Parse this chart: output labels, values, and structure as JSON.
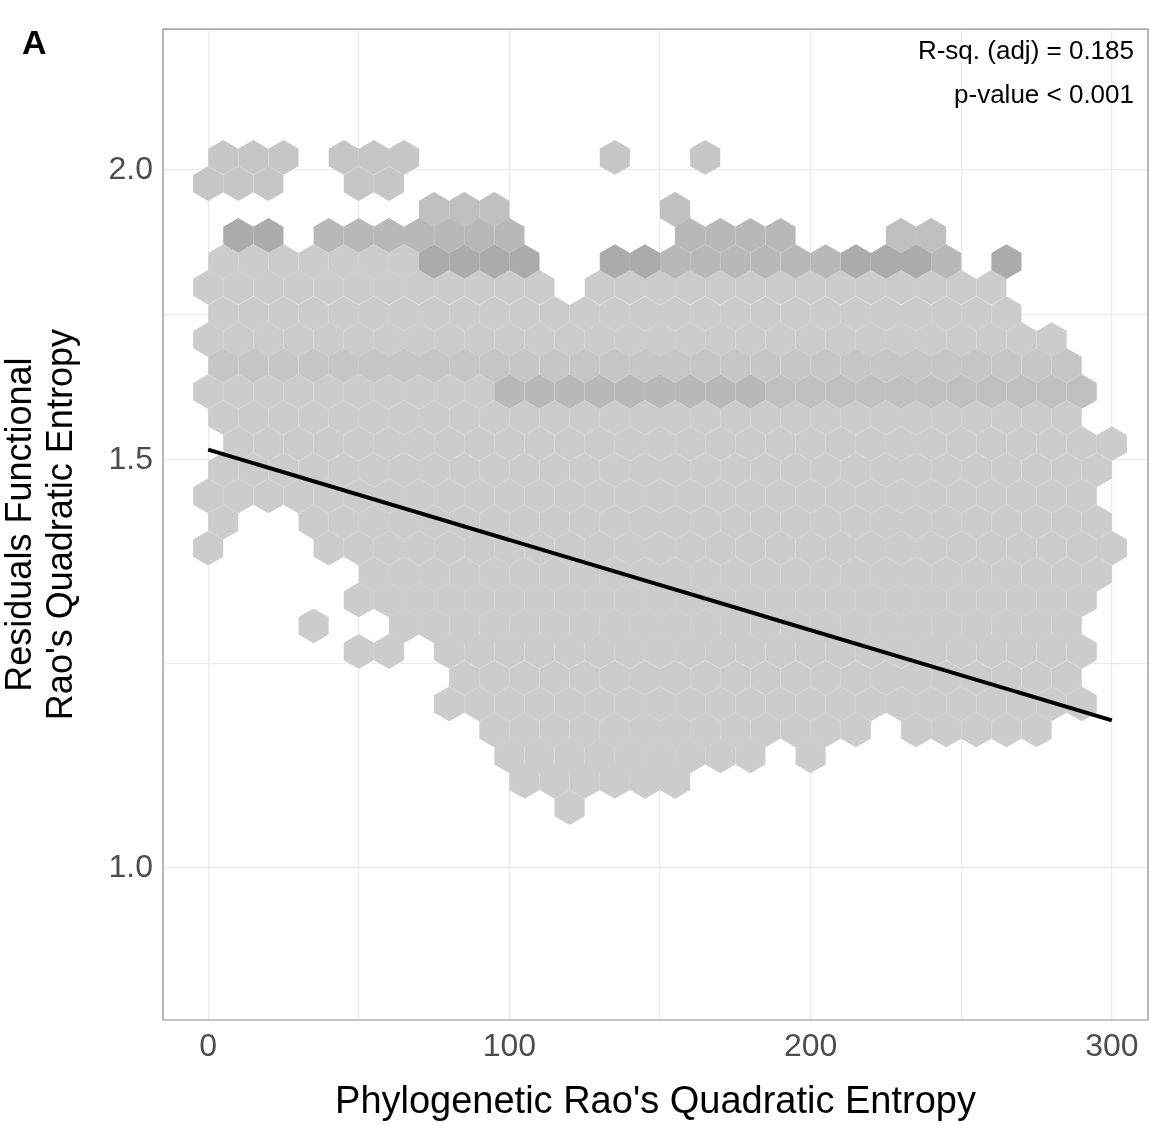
{
  "chart_data": {
    "type": "scatter",
    "title": "A",
    "xlabel": "Phylogenetic Rao's Quadratic Entropy",
    "ylabel": "Residuals Functional\nRao's Quadratic Entropy",
    "annotations": [
      "R-sq. (adj) = 0.185",
      "p-value < 0.001"
    ],
    "log": "y",
    "grid": true,
    "xlim": [
      -15,
      312
    ],
    "xticks": [
      0,
      {
        "value": 50,
        "label": null
      },
      100,
      {
        "value": 150,
        "label": null
      },
      200,
      {
        "value": 250,
        "label": null
      },
      300
    ],
    "ylim": [
      0.86,
      2.3
    ],
    "yticks": [
      {
        "value": 1,
        "label": "1.0"
      },
      {
        "value": 1.225,
        "label": null
      },
      {
        "value": 1.5,
        "label": "1.5"
      },
      {
        "value": 1.732,
        "label": null
      },
      {
        "value": 2,
        "label": "2.0"
      }
    ],
    "series": [
      {
        "color": "#c6c6c6",
        "x": [
          5,
          15,
          25,
          45,
          55,
          65,
          135,
          165
        ],
        "values": [
          2.025,
          2.025,
          2.025,
          2.025,
          2.025,
          2.025,
          2.025,
          2.025
        ]
      },
      {
        "color": "#c6c6c6",
        "x": [
          0,
          10,
          20,
          50,
          60
        ],
        "values": [
          1.973,
          1.973,
          1.973,
          1.973,
          1.973
        ]
      },
      {
        "color": "#c0c0c0",
        "x": [
          75,
          85,
          95,
          155
        ],
        "values": [
          1.923,
          1.923,
          1.923,
          1.923
        ]
      },
      {
        "color": "#ababab",
        "x": [
          10,
          20
        ],
        "values": [
          1.874,
          1.874
        ]
      },
      {
        "color": "#b8b8b8",
        "x": [
          40,
          50,
          60,
          70,
          80,
          90,
          100,
          160,
          170,
          180,
          190
        ],
        "values": [
          1.874,
          1.874,
          1.874,
          1.874,
          1.874,
          1.874,
          1.874,
          1.874,
          1.874,
          1.874,
          1.874
        ]
      },
      {
        "color": "#c0c0c0",
        "x": [
          230,
          240
        ],
        "values": [
          1.874,
          1.874
        ]
      },
      {
        "color": "#cccccc",
        "x": [
          5,
          15,
          25,
          35,
          45,
          55,
          65
        ],
        "values": [
          1.826,
          1.826,
          1.826,
          1.826,
          1.826,
          1.826,
          1.826
        ]
      },
      {
        "color": "#ababab",
        "x": [
          75,
          85,
          95,
          105,
          135,
          145,
          215,
          225,
          235,
          265
        ],
        "values": [
          1.826,
          1.826,
          1.826,
          1.826,
          1.826,
          1.826,
          1.826,
          1.826,
          1.826,
          1.826
        ]
      },
      {
        "color": "#b8b8b8",
        "x": [
          155,
          165,
          175,
          185,
          195,
          205,
          245
        ],
        "values": [
          1.826,
          1.826,
          1.826,
          1.826,
          1.826,
          1.826,
          1.826
        ]
      },
      {
        "color": "#cccccc",
        "x": [
          0,
          10,
          20,
          30,
          40,
          50,
          60,
          70,
          80,
          90,
          100,
          110,
          130,
          140,
          150,
          160,
          170,
          180,
          190,
          200,
          210,
          220,
          230,
          240,
          250,
          260
        ],
        "values": [
          1.78,
          1.78,
          1.78,
          1.78,
          1.78,
          1.78,
          1.78,
          1.78,
          1.78,
          1.78,
          1.78,
          1.78,
          1.78,
          1.78,
          1.78,
          1.78,
          1.78,
          1.78,
          1.78,
          1.78,
          1.78,
          1.78,
          1.78,
          1.78,
          1.78,
          1.78
        ]
      },
      {
        "color": "#cccccc",
        "x": [
          5,
          15,
          25,
          35,
          45,
          55,
          65,
          75,
          85,
          95,
          105,
          115,
          125,
          135,
          145,
          155,
          165,
          175,
          185,
          195,
          205,
          215,
          225,
          235,
          245,
          255,
          265
        ],
        "values": [
          1.734,
          1.734,
          1.734,
          1.734,
          1.734,
          1.734,
          1.734,
          1.734,
          1.734,
          1.734,
          1.734,
          1.734,
          1.734,
          1.734,
          1.734,
          1.734,
          1.734,
          1.734,
          1.734,
          1.734,
          1.734,
          1.734,
          1.734,
          1.734,
          1.734,
          1.734,
          1.734
        ]
      },
      {
        "color": "#cccccc",
        "x": [
          0,
          10,
          20,
          30,
          40,
          50,
          60,
          70,
          80,
          90,
          100,
          110,
          120,
          130,
          140,
          150,
          160,
          170,
          180,
          190,
          200,
          210,
          220,
          230,
          240,
          250,
          260,
          270,
          280
        ],
        "values": [
          1.69,
          1.69,
          1.69,
          1.69,
          1.69,
          1.69,
          1.69,
          1.69,
          1.69,
          1.69,
          1.69,
          1.69,
          1.69,
          1.69,
          1.69,
          1.69,
          1.69,
          1.69,
          1.69,
          1.69,
          1.69,
          1.69,
          1.69,
          1.69,
          1.69,
          1.69,
          1.69,
          1.69,
          1.69
        ]
      },
      {
        "color": "#c6c6c6",
        "x": [
          5,
          15,
          25,
          35,
          45,
          55,
          65,
          75,
          85,
          95,
          105,
          115,
          125,
          135,
          145,
          155,
          165,
          175,
          185,
          195,
          205,
          215,
          225,
          235,
          245,
          255,
          265,
          275,
          285
        ],
        "values": [
          1.647,
          1.647,
          1.647,
          1.647,
          1.647,
          1.647,
          1.647,
          1.647,
          1.647,
          1.647,
          1.647,
          1.647,
          1.647,
          1.647,
          1.647,
          1.647,
          1.647,
          1.647,
          1.647,
          1.647,
          1.647,
          1.647,
          1.647,
          1.647,
          1.647,
          1.647,
          1.647,
          1.647,
          1.647
        ]
      },
      {
        "color": "#cccccc",
        "x": [
          0,
          10,
          20,
          30,
          40,
          50,
          60,
          70,
          80,
          90
        ],
        "values": [
          1.605,
          1.605,
          1.605,
          1.605,
          1.605,
          1.605,
          1.605,
          1.605,
          1.605,
          1.605
        ]
      },
      {
        "color": "#b8b8b8",
        "x": [
          100,
          110,
          120,
          130,
          140,
          150,
          160,
          170,
          180
        ],
        "values": [
          1.605,
          1.605,
          1.605,
          1.605,
          1.605,
          1.605,
          1.605,
          1.605,
          1.605
        ]
      },
      {
        "color": "#c0c0c0",
        "x": [
          190,
          200,
          210,
          220,
          230,
          240,
          250,
          260,
          270,
          280,
          290
        ],
        "values": [
          1.605,
          1.605,
          1.605,
          1.605,
          1.605,
          1.605,
          1.605,
          1.605,
          1.605,
          1.605,
          1.605
        ]
      },
      {
        "color": "#cccccc",
        "x": [
          5,
          15,
          25,
          35,
          45,
          55,
          65,
          75,
          85,
          95,
          105,
          115,
          125,
          135,
          145,
          155,
          165,
          175,
          185,
          195,
          205,
          215,
          225,
          235,
          245,
          255,
          265,
          275,
          285
        ],
        "values": [
          1.564,
          1.564,
          1.564,
          1.564,
          1.564,
          1.564,
          1.564,
          1.564,
          1.564,
          1.564,
          1.564,
          1.564,
          1.564,
          1.564,
          1.564,
          1.564,
          1.564,
          1.564,
          1.564,
          1.564,
          1.564,
          1.564,
          1.564,
          1.564,
          1.564,
          1.564,
          1.564,
          1.564,
          1.564
        ]
      },
      {
        "color": "#cccccc",
        "x": [
          10,
          20,
          30,
          40,
          50,
          60,
          70,
          80,
          90,
          100,
          110,
          120,
          130,
          140,
          150,
          160,
          170,
          180,
          190,
          200,
          210,
          220,
          230,
          240,
          250,
          260,
          270,
          280,
          290,
          300
        ],
        "values": [
          1.524,
          1.524,
          1.524,
          1.524,
          1.524,
          1.524,
          1.524,
          1.524,
          1.524,
          1.524,
          1.524,
          1.524,
          1.524,
          1.524,
          1.524,
          1.524,
          1.524,
          1.524,
          1.524,
          1.524,
          1.524,
          1.524,
          1.524,
          1.524,
          1.524,
          1.524,
          1.524,
          1.524,
          1.524,
          1.524
        ]
      },
      {
        "color": "#cccccc",
        "x": [
          5,
          15,
          25,
          35,
          45,
          55,
          65,
          75,
          85,
          95,
          105,
          115,
          125,
          135,
          145,
          155,
          165,
          175,
          185,
          195,
          205,
          215,
          225,
          235,
          245,
          255,
          265,
          275,
          285,
          295
        ],
        "values": [
          1.485,
          1.485,
          1.485,
          1.485,
          1.485,
          1.485,
          1.485,
          1.485,
          1.485,
          1.485,
          1.485,
          1.485,
          1.485,
          1.485,
          1.485,
          1.485,
          1.485,
          1.485,
          1.485,
          1.485,
          1.485,
          1.485,
          1.485,
          1.485,
          1.485,
          1.485,
          1.485,
          1.485,
          1.485,
          1.485
        ]
      },
      {
        "color": "#cccccc",
        "x": [
          0,
          10,
          20,
          30,
          40,
          50,
          60,
          70,
          80,
          90,
          100,
          110,
          120,
          130,
          140,
          150,
          160,
          170,
          180,
          190,
          200,
          210,
          220,
          230,
          240,
          250,
          260,
          270,
          280,
          290
        ],
        "values": [
          1.447,
          1.447,
          1.447,
          1.447,
          1.447,
          1.447,
          1.447,
          1.447,
          1.447,
          1.447,
          1.447,
          1.447,
          1.447,
          1.447,
          1.447,
          1.447,
          1.447,
          1.447,
          1.447,
          1.447,
          1.447,
          1.447,
          1.447,
          1.447,
          1.447,
          1.447,
          1.447,
          1.447,
          1.447,
          1.447
        ]
      },
      {
        "color": "#cccccc",
        "x": [
          5,
          35,
          45,
          55,
          65,
          75,
          85,
          95,
          105,
          115,
          125,
          135,
          145,
          155,
          165,
          175,
          185,
          195,
          205,
          215,
          225,
          235,
          245,
          255,
          265,
          275,
          285,
          295
        ],
        "values": [
          1.41,
          1.41,
          1.41,
          1.41,
          1.41,
          1.41,
          1.41,
          1.41,
          1.41,
          1.41,
          1.41,
          1.41,
          1.41,
          1.41,
          1.41,
          1.41,
          1.41,
          1.41,
          1.41,
          1.41,
          1.41,
          1.41,
          1.41,
          1.41,
          1.41,
          1.41,
          1.41,
          1.41
        ]
      },
      {
        "color": "#cccccc",
        "x": [
          0,
          40,
          50,
          60,
          70,
          80,
          90,
          100,
          110,
          120,
          130,
          140,
          150,
          160,
          170,
          180,
          190,
          200,
          210,
          220,
          230,
          240,
          250,
          260,
          270,
          280,
          290,
          300
        ],
        "values": [
          1.374,
          1.374,
          1.374,
          1.374,
          1.374,
          1.374,
          1.374,
          1.374,
          1.374,
          1.374,
          1.374,
          1.374,
          1.374,
          1.374,
          1.374,
          1.374,
          1.374,
          1.374,
          1.374,
          1.374,
          1.374,
          1.374,
          1.374,
          1.374,
          1.374,
          1.374,
          1.374,
          1.374
        ]
      },
      {
        "color": "#cccccc",
        "x": [
          55,
          65,
          75,
          85,
          95,
          105,
          115,
          125,
          135,
          145,
          155,
          165,
          175,
          185,
          195,
          205,
          215,
          225,
          235,
          245,
          255,
          265,
          275,
          285,
          295
        ],
        "values": [
          1.339,
          1.339,
          1.339,
          1.339,
          1.339,
          1.339,
          1.339,
          1.339,
          1.339,
          1.339,
          1.339,
          1.339,
          1.339,
          1.339,
          1.339,
          1.339,
          1.339,
          1.339,
          1.339,
          1.339,
          1.339,
          1.339,
          1.339,
          1.339,
          1.339
        ]
      },
      {
        "color": "#cccccc",
        "x": [
          50,
          60,
          70,
          80,
          90,
          100,
          110,
          120,
          130,
          140,
          150,
          160,
          170,
          180,
          190,
          200,
          210,
          220,
          230,
          240,
          250,
          260,
          270,
          280,
          290
        ],
        "values": [
          1.305,
          1.305,
          1.305,
          1.305,
          1.305,
          1.305,
          1.305,
          1.305,
          1.305,
          1.305,
          1.305,
          1.305,
          1.305,
          1.305,
          1.305,
          1.305,
          1.305,
          1.305,
          1.305,
          1.305,
          1.305,
          1.305,
          1.305,
          1.305,
          1.305
        ]
      },
      {
        "color": "#cccccc",
        "x": [
          35,
          65,
          75,
          85,
          95,
          105,
          115,
          125,
          135,
          145,
          155,
          165,
          175,
          185,
          195,
          205,
          215,
          225,
          235,
          245,
          255,
          265,
          275,
          285
        ],
        "values": [
          1.272,
          1.272,
          1.272,
          1.272,
          1.272,
          1.272,
          1.272,
          1.272,
          1.272,
          1.272,
          1.272,
          1.272,
          1.272,
          1.272,
          1.272,
          1.272,
          1.272,
          1.272,
          1.272,
          1.272,
          1.272,
          1.272,
          1.272,
          1.272
        ]
      },
      {
        "color": "#cccccc",
        "x": [
          50,
          60,
          80,
          90,
          100,
          110,
          120,
          130,
          140,
          150,
          160,
          170,
          180,
          190,
          200,
          210,
          220,
          230,
          240,
          250,
          260,
          270,
          280,
          290
        ],
        "values": [
          1.24,
          1.24,
          1.24,
          1.24,
          1.24,
          1.24,
          1.24,
          1.24,
          1.24,
          1.24,
          1.24,
          1.24,
          1.24,
          1.24,
          1.24,
          1.24,
          1.24,
          1.24,
          1.24,
          1.24,
          1.24,
          1.24,
          1.24,
          1.24
        ]
      },
      {
        "color": "#cccccc",
        "x": [
          85,
          95,
          105,
          115,
          125,
          135,
          145,
          155,
          165,
          175,
          185,
          195,
          205,
          215,
          225,
          235,
          245,
          255,
          265,
          275,
          285
        ],
        "values": [
          1.208,
          1.208,
          1.208,
          1.208,
          1.208,
          1.208,
          1.208,
          1.208,
          1.208,
          1.208,
          1.208,
          1.208,
          1.208,
          1.208,
          1.208,
          1.208,
          1.208,
          1.208,
          1.208,
          1.208,
          1.208
        ]
      },
      {
        "color": "#cccccc",
        "x": [
          80,
          90,
          100,
          110,
          120,
          130,
          140,
          150,
          160,
          170,
          180,
          190,
          200,
          210,
          220,
          230,
          240,
          250,
          260,
          270,
          280,
          290
        ],
        "values": [
          1.177,
          1.177,
          1.177,
          1.177,
          1.177,
          1.177,
          1.177,
          1.177,
          1.177,
          1.177,
          1.177,
          1.177,
          1.177,
          1.177,
          1.177,
          1.177,
          1.177,
          1.177,
          1.177,
          1.177,
          1.177,
          1.177
        ]
      },
      {
        "color": "#cccccc",
        "x": [
          95,
          105,
          115,
          125,
          135,
          145,
          155,
          165,
          175,
          185,
          195,
          205,
          215,
          235,
          245,
          255,
          265,
          275
        ],
        "values": [
          1.147,
          1.147,
          1.147,
          1.147,
          1.147,
          1.147,
          1.147,
          1.147,
          1.147,
          1.147,
          1.147,
          1.147,
          1.147,
          1.147,
          1.147,
          1.147,
          1.147,
          1.147
        ]
      },
      {
        "color": "#cccccc",
        "x": [
          100,
          110,
          120,
          130,
          140,
          150,
          160,
          170,
          180,
          200
        ],
        "values": [
          1.118,
          1.118,
          1.118,
          1.118,
          1.118,
          1.118,
          1.118,
          1.118,
          1.118,
          1.118
        ]
      },
      {
        "color": "#cccccc",
        "x": [
          105,
          115,
          125,
          135,
          145,
          155
        ],
        "values": [
          1.09,
          1.09,
          1.09,
          1.09,
          1.09,
          1.09
        ]
      },
      {
        "color": "#cccccc",
        "x": [
          120
        ],
        "values": [
          1.062
        ]
      },
      {
        "type": "line",
        "color": "#000000",
        "x": [
          0,
          300
        ],
        "values": [
          1.515,
          1.158
        ]
      }
    ]
  }
}
